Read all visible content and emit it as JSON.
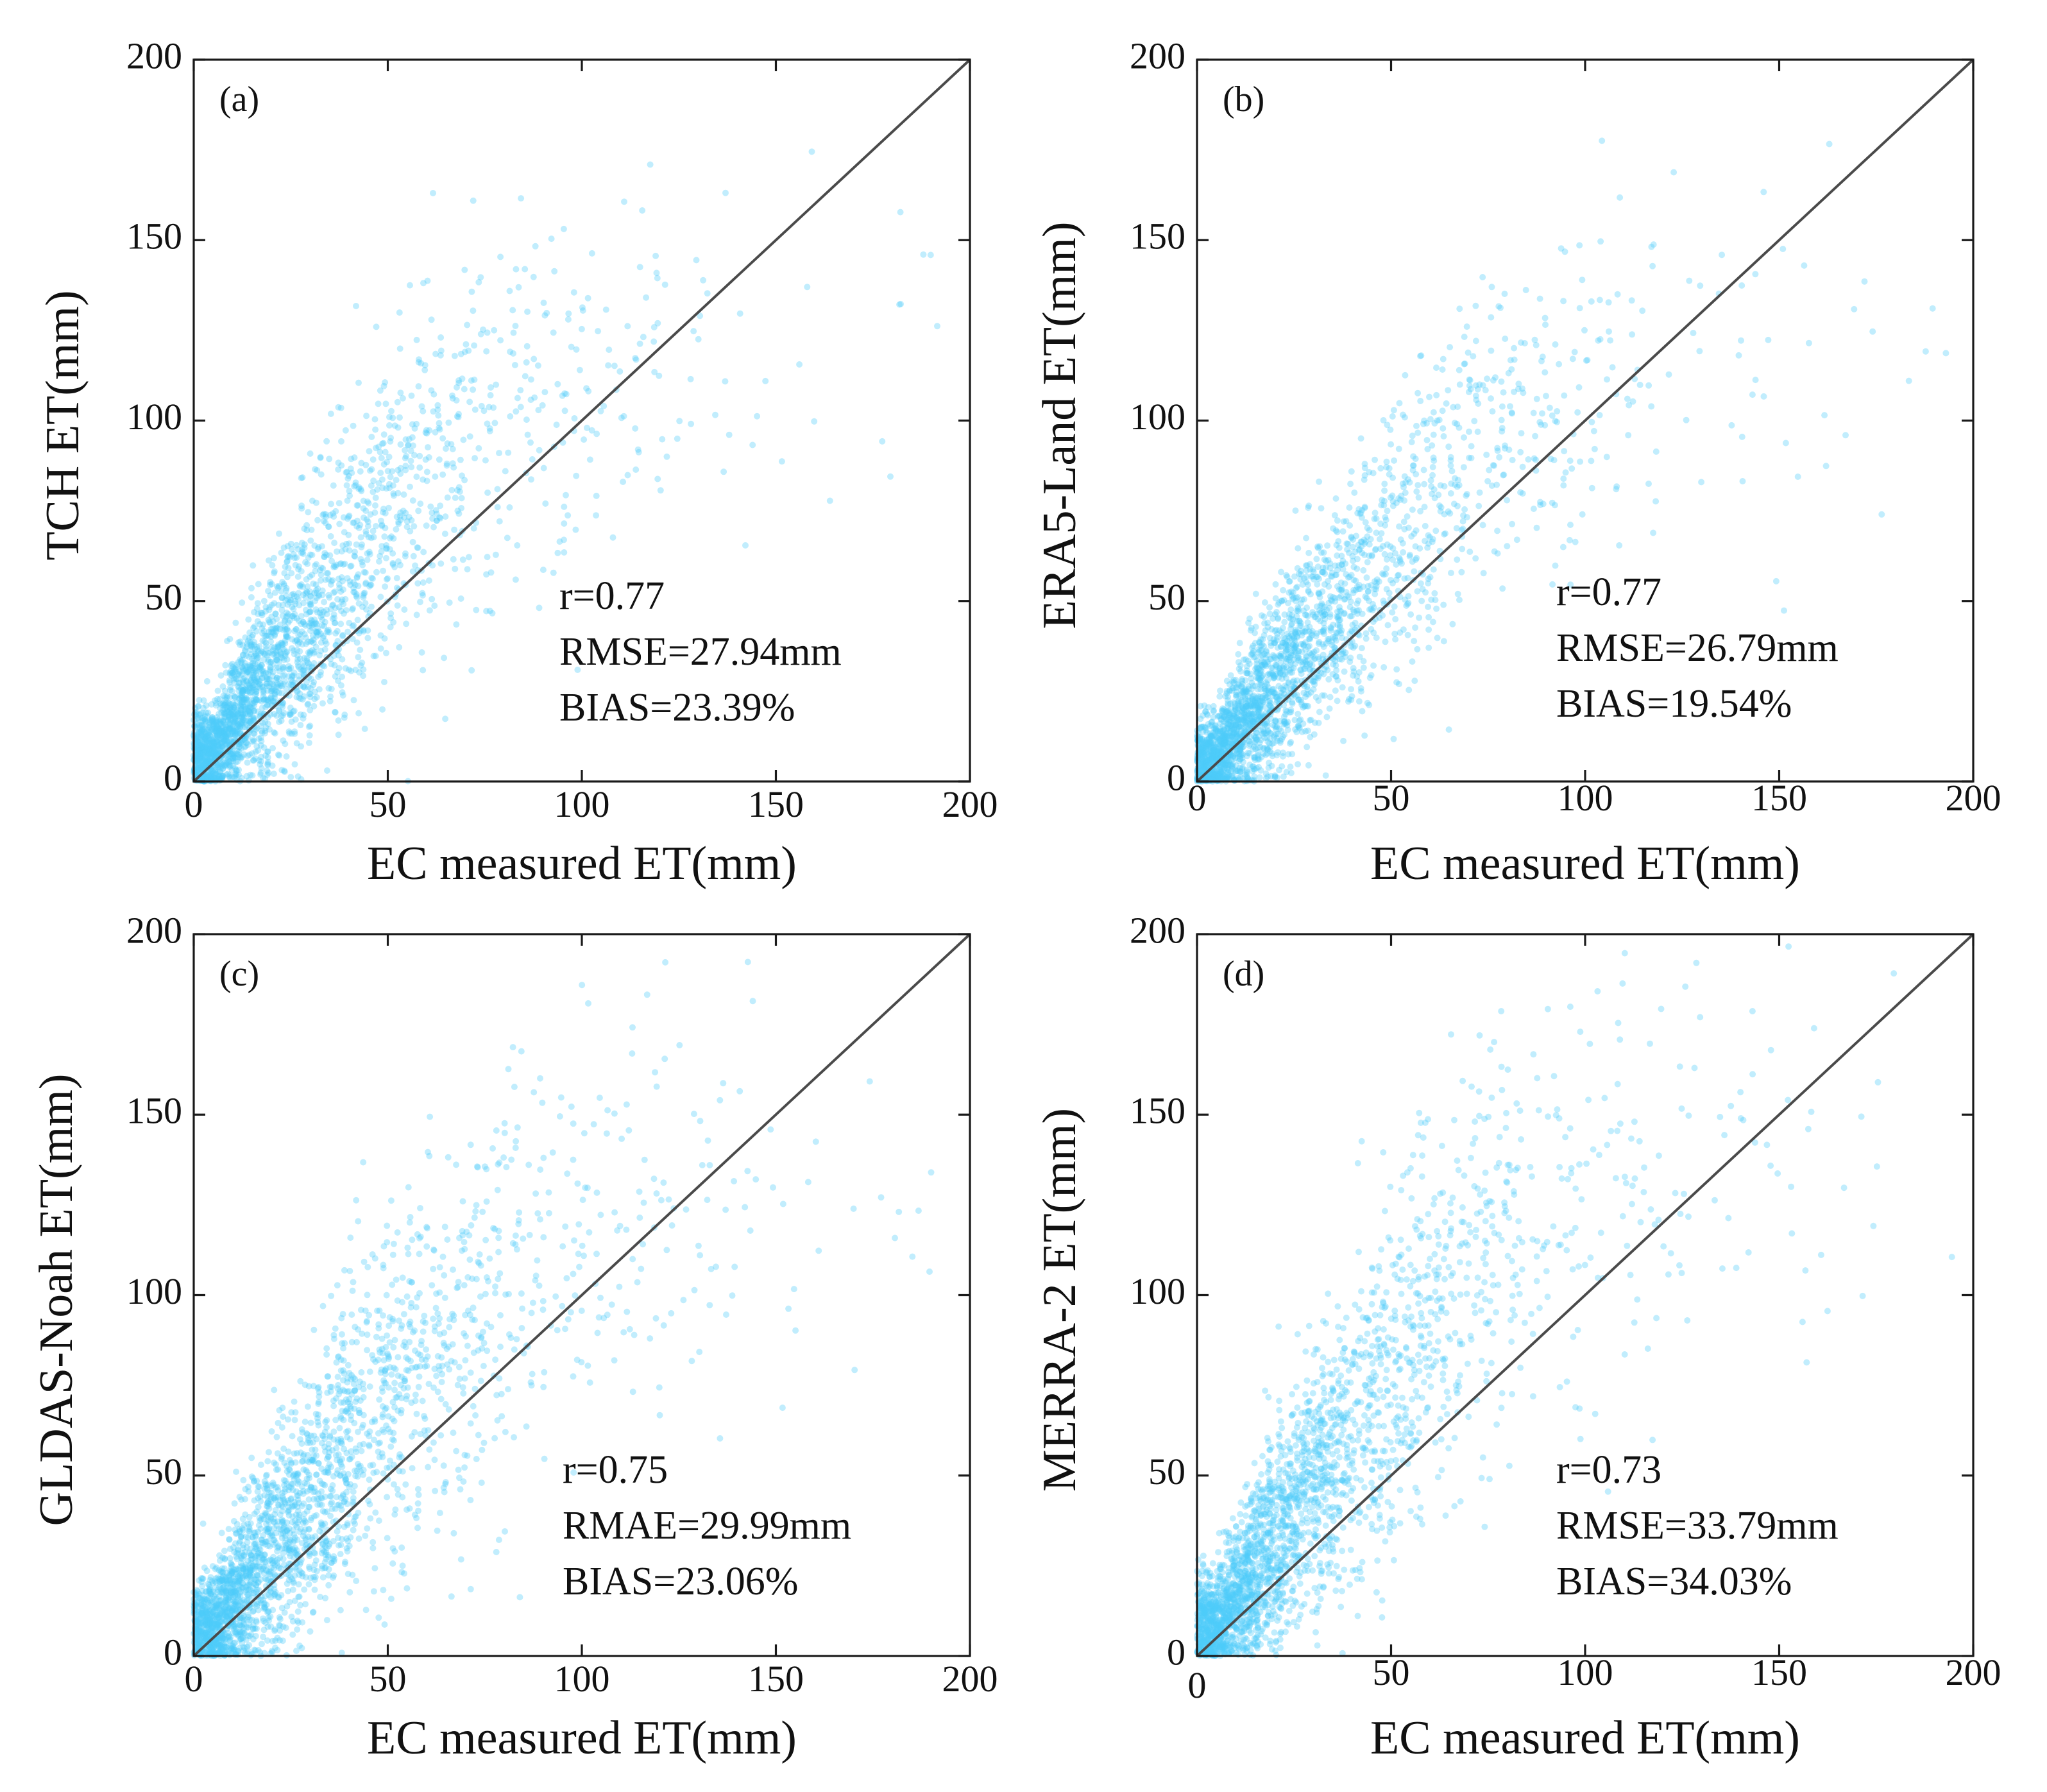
{
  "figure": {
    "point_color": "#4DCCF8",
    "frame_color": "#1a1a1a",
    "line_color": "#4a4a4a"
  },
  "chart_data": [
    {
      "type": "scatter",
      "panel": "(a)",
      "xlabel": "EC measured ET(mm)",
      "ylabel": "TCH ET(mm)",
      "xlim": [
        0,
        200
      ],
      "ylim": [
        0,
        200
      ],
      "xticks": [
        "0",
        "50",
        "100",
        "150",
        "200"
      ],
      "yticks": [
        "0",
        "50",
        "100",
        "150",
        "200"
      ],
      "reference_line": "1:1",
      "annotations": {
        "r": "r=0.77",
        "error": "RMSE=27.94mm",
        "bias": "BIAS=23.39%"
      },
      "trend_centers": [
        [
          5,
          8
        ],
        [
          15,
          24
        ],
        [
          25,
          38
        ],
        [
          40,
          58
        ],
        [
          55,
          78
        ],
        [
          75,
          100
        ],
        [
          100,
          110
        ],
        [
          125,
          118
        ],
        [
          150,
          122
        ]
      ],
      "spread": [
        [
          5,
          6
        ],
        [
          20,
          14
        ],
        [
          50,
          22
        ],
        [
          100,
          26
        ],
        [
          150,
          28
        ]
      ],
      "x_scale": 30,
      "x_max": 195,
      "point_count": 2600
    },
    {
      "type": "scatter",
      "panel": "(b)",
      "xlabel": "EC measured ET(mm)",
      "ylabel": "ERA5-Land ET(mm)",
      "xlim": [
        0,
        200
      ],
      "ylim": [
        0,
        200
      ],
      "xticks": [
        "0",
        "50",
        "100",
        "150",
        "200"
      ],
      "yticks": [
        "0",
        "50",
        "100",
        "150",
        "200"
      ],
      "reference_line": "1:1",
      "annotations": {
        "r": "r=0.77",
        "error": "RMSE=26.79mm",
        "bias": "BIAS=19.54%"
      },
      "trend_centers": [
        [
          5,
          6
        ],
        [
          15,
          20
        ],
        [
          25,
          33
        ],
        [
          40,
          52
        ],
        [
          55,
          70
        ],
        [
          75,
          95
        ],
        [
          100,
          108
        ],
        [
          125,
          115
        ],
        [
          150,
          120
        ]
      ],
      "spread": [
        [
          5,
          6
        ],
        [
          20,
          13
        ],
        [
          50,
          20
        ],
        [
          100,
          25
        ],
        [
          150,
          27
        ]
      ],
      "x_scale": 30,
      "x_max": 195,
      "point_count": 2600
    },
    {
      "type": "scatter",
      "panel": "(c)",
      "xlabel": "EC measured ET(mm)",
      "ylabel": "GLDAS-Noah ET(mm)",
      "xlim": [
        0,
        200
      ],
      "ylim": [
        0,
        200
      ],
      "xticks": [
        "0",
        "50",
        "100",
        "150",
        "200"
      ],
      "yticks": [
        "0",
        "50",
        "100",
        "150",
        "200"
      ],
      "reference_line": "1:1",
      "annotations": {
        "r": "r=0.75",
        "error": "RMAE=29.99mm",
        "bias": "BIAS=23.06%"
      },
      "trend_centers": [
        [
          5,
          8
        ],
        [
          15,
          22
        ],
        [
          25,
          37
        ],
        [
          40,
          58
        ],
        [
          55,
          78
        ],
        [
          75,
          100
        ],
        [
          100,
          112
        ],
        [
          125,
          122
        ],
        [
          150,
          128
        ]
      ],
      "spread": [
        [
          5,
          7
        ],
        [
          20,
          15
        ],
        [
          50,
          25
        ],
        [
          100,
          30
        ],
        [
          150,
          32
        ]
      ],
      "x_scale": 32,
      "x_max": 195,
      "point_count": 2600
    },
    {
      "type": "scatter",
      "panel": "(d)",
      "xlabel": "EC measured ET(mm)",
      "ylabel": "MERRA-2 ET(mm)",
      "xlim": [
        0,
        200
      ],
      "ylim": [
        0,
        200
      ],
      "xticks": [
        "0",
        "50",
        "100",
        "150",
        "200"
      ],
      "yticks": [
        "0",
        "50",
        "100",
        "150",
        "200"
      ],
      "reference_line": "1:1",
      "annotations": {
        "r": "r=0.73",
        "error": "RMSE=33.79mm",
        "bias": "BIAS=34.03%"
      },
      "trend_centers": [
        [
          5,
          8
        ],
        [
          15,
          25
        ],
        [
          25,
          40
        ],
        [
          40,
          62
        ],
        [
          55,
          85
        ],
        [
          75,
          110
        ],
        [
          100,
          125
        ],
        [
          125,
          135
        ],
        [
          150,
          140
        ]
      ],
      "spread": [
        [
          5,
          7
        ],
        [
          20,
          15
        ],
        [
          50,
          25
        ],
        [
          100,
          30
        ],
        [
          150,
          32
        ]
      ],
      "x_scale": 30,
      "x_max": 195,
      "point_count": 2600
    }
  ]
}
